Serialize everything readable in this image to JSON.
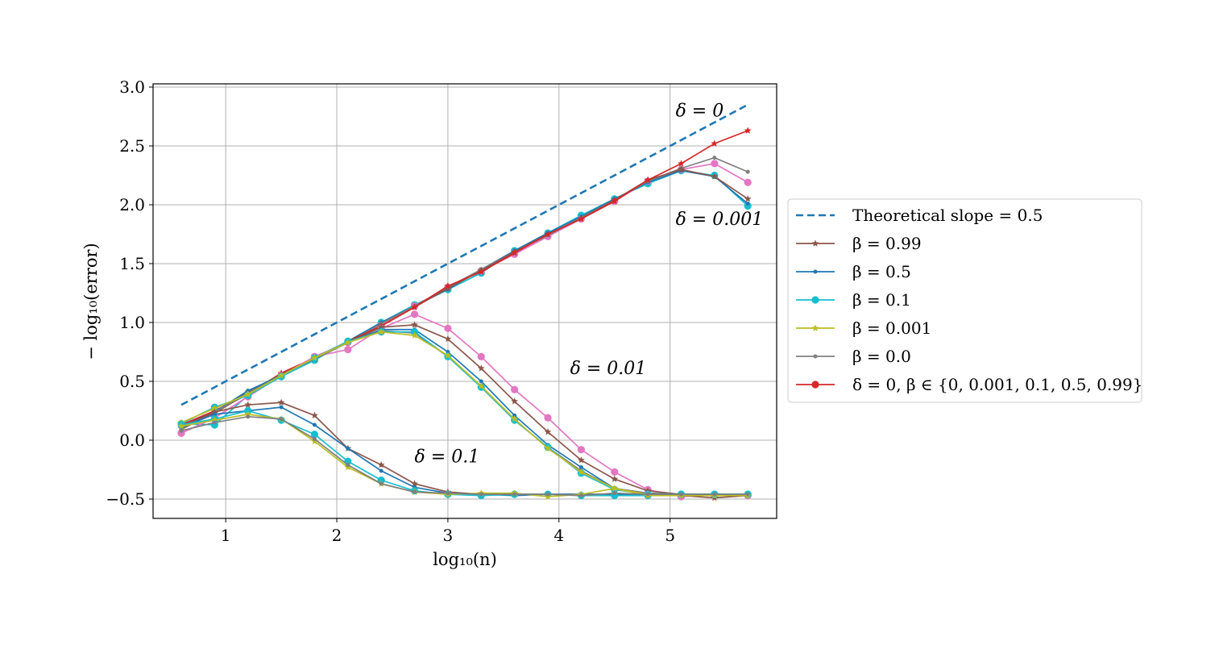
{
  "chart_data": {
    "type": "line",
    "title": "",
    "xlabel": "log₁₀(n)",
    "ylabel": "− log₁₀(error)",
    "xlim": [
      0.35,
      5.95
    ],
    "ylim": [
      -0.66,
      3.03
    ],
    "grid": true,
    "legend_placement": "outside-right",
    "x_ticks": [
      {
        "value": 1,
        "label": "1"
      },
      {
        "value": 2,
        "label": "2"
      },
      {
        "value": 3,
        "label": "3"
      },
      {
        "value": 4,
        "label": "4"
      },
      {
        "value": 5,
        "label": "5"
      }
    ],
    "y_ticks": [
      {
        "value": 3.0,
        "label": "3.0"
      },
      {
        "value": 2.5,
        "label": "2.5"
      },
      {
        "value": 2.0,
        "label": "2.0"
      },
      {
        "value": 1.5,
        "label": "1.5"
      },
      {
        "value": 1.0,
        "label": "1.0"
      },
      {
        "value": 0.5,
        "label": "0.5"
      },
      {
        "value": 0.0,
        "label": "0.0"
      },
      {
        "value": -0.5,
        "label": "−0.5"
      }
    ],
    "x": [
      0.6,
      0.9,
      1.2,
      1.5,
      1.8,
      2.1,
      2.4,
      2.7,
      3.0,
      3.3,
      3.6,
      3.9,
      4.2,
      4.5,
      4.8,
      5.1,
      5.4,
      5.7
    ],
    "theoretical": {
      "name": "Theoretical slope = 0.5",
      "x": [
        0.6,
        5.7
      ],
      "y": [
        0.3,
        2.85
      ],
      "color": "#1f77b4"
    },
    "annotations": [
      {
        "text": "δ = 0",
        "x": 5.05,
        "y": 2.75
      },
      {
        "text": "δ = 0.001",
        "x": 5.05,
        "y": 1.83
      },
      {
        "text": "δ = 0.01",
        "x": 4.1,
        "y": 0.56
      },
      {
        "text": "δ = 0.1",
        "x": 2.7,
        "y": -0.19
      }
    ],
    "legend": [
      {
        "key": "theoretical",
        "label": "Theoretical slope = 0.5",
        "color": "#1f77b4",
        "marker": "dash"
      },
      {
        "key": "b099",
        "label": "β = 0.99",
        "color": "#8c564b",
        "marker": "star"
      },
      {
        "key": "b05",
        "label": "β = 0.5",
        "color": "#1f77b4",
        "marker": "dot"
      },
      {
        "key": "b01",
        "label": "β = 0.1",
        "color": "#17becf",
        "marker": "circle"
      },
      {
        "key": "b0001",
        "label": "β = 0.001",
        "color": "#bcbd22",
        "marker": "star"
      },
      {
        "key": "b00",
        "label": "β = 0.0",
        "color": "#7f7f7f",
        "marker": "dot"
      },
      {
        "key": "d0",
        "label": "δ = 0,  β ∈ {0, 0.001, 0.1, 0.5, 0.99}",
        "color": "#d62728",
        "marker": "circle"
      }
    ],
    "series": [
      {
        "group": "δ = 0.001",
        "color": "#17becf",
        "marker": "circle",
        "values": [
          0.14,
          0.13,
          0.38,
          0.54,
          0.68,
          0.84,
          1.0,
          1.15,
          1.28,
          1.42,
          1.61,
          1.76,
          1.91,
          2.05,
          2.18,
          2.29,
          2.25,
          1.99
        ]
      },
      {
        "group": "δ = 0.001",
        "color": "#e377c2",
        "marker": "circle",
        "values": [
          0.06,
          0.19,
          0.37,
          0.55,
          0.71,
          0.83,
          0.98,
          1.14,
          1.3,
          1.44,
          1.58,
          1.73,
          1.88,
          2.03,
          2.2,
          2.3,
          2.35,
          2.19
        ]
      },
      {
        "group": "δ = 0.001",
        "color": "#1f77b4",
        "marker": "dot",
        "values": [
          0.12,
          0.24,
          0.41,
          0.55,
          0.69,
          0.84,
          1.0,
          1.14,
          1.28,
          1.45,
          1.61,
          1.76,
          1.9,
          2.05,
          2.19,
          2.29,
          2.24,
          2.01
        ]
      },
      {
        "group": "δ = 0.001",
        "color": "#7f7f7f",
        "marker": "dot",
        "values": [
          0.1,
          0.24,
          0.39,
          0.56,
          0.69,
          0.83,
          0.99,
          1.14,
          1.3,
          1.45,
          1.6,
          1.74,
          1.89,
          2.04,
          2.2,
          2.31,
          2.4,
          2.28
        ]
      },
      {
        "group": "δ = 0.001",
        "color": "#8c564b",
        "marker": "star",
        "values": [
          0.12,
          0.23,
          0.4,
          0.55,
          0.69,
          0.84,
          0.97,
          1.13,
          1.29,
          1.44,
          1.6,
          1.75,
          1.88,
          2.04,
          2.21,
          2.3,
          2.24,
          2.05
        ]
      },
      {
        "group": "δ = 0",
        "color": "#d62728",
        "marker": "star",
        "values": [
          0.13,
          0.25,
          0.39,
          0.57,
          0.7,
          0.84,
          0.97,
          1.13,
          1.31,
          1.43,
          1.59,
          1.75,
          1.88,
          2.03,
          2.21,
          2.35,
          2.52,
          2.63
        ]
      },
      {
        "group": "δ = 0.01",
        "color": "#e377c2",
        "marker": "circle",
        "values": [
          0.06,
          0.19,
          0.37,
          0.55,
          0.71,
          0.77,
          0.95,
          1.07,
          0.95,
          0.71,
          0.43,
          0.19,
          -0.08,
          -0.27,
          -0.42,
          -0.48,
          -0.46,
          -0.47
        ]
      },
      {
        "group": "δ = 0.01",
        "color": "#8c564b",
        "marker": "star",
        "values": [
          0.12,
          0.23,
          0.41,
          0.56,
          0.69,
          0.83,
          0.96,
          0.98,
          0.86,
          0.61,
          0.33,
          0.07,
          -0.17,
          -0.33,
          -0.43,
          -0.46,
          -0.47,
          -0.47
        ]
      },
      {
        "group": "δ = 0.01",
        "color": "#1f77b4",
        "marker": "dot",
        "values": [
          0.1,
          0.24,
          0.42,
          0.55,
          0.69,
          0.83,
          0.94,
          0.94,
          0.75,
          0.5,
          0.21,
          -0.04,
          -0.23,
          -0.41,
          -0.45,
          -0.46,
          -0.46,
          -0.46
        ]
      },
      {
        "group": "δ = 0.01",
        "color": "#7f7f7f",
        "marker": "dot",
        "values": [
          0.09,
          0.24,
          0.4,
          0.55,
          0.69,
          0.83,
          0.93,
          0.91,
          0.71,
          0.46,
          0.17,
          -0.06,
          -0.26,
          -0.41,
          -0.45,
          -0.46,
          -0.46,
          -0.47
        ]
      },
      {
        "group": "δ = 0.01",
        "color": "#17becf",
        "marker": "circle",
        "values": [
          0.14,
          0.28,
          0.38,
          0.54,
          0.7,
          0.84,
          0.92,
          0.92,
          0.71,
          0.45,
          0.17,
          -0.06,
          -0.28,
          -0.42,
          -0.46,
          -0.46,
          -0.46,
          -0.46
        ]
      },
      {
        "group": "δ = 0.01",
        "color": "#bcbd22",
        "marker": "star",
        "values": [
          0.15,
          0.27,
          0.39,
          0.55,
          0.7,
          0.83,
          0.92,
          0.89,
          0.72,
          0.46,
          0.18,
          -0.07,
          -0.27,
          -0.41,
          -0.46,
          -0.47,
          -0.47,
          -0.47
        ]
      },
      {
        "group": "δ = 0.1",
        "color": "#8c564b",
        "marker": "star",
        "values": [
          0.1,
          0.24,
          0.3,
          0.32,
          0.21,
          -0.07,
          -0.21,
          -0.37,
          -0.44,
          -0.46,
          -0.46,
          -0.46,
          -0.46,
          -0.46,
          -0.47,
          -0.47,
          -0.49,
          -0.47
        ]
      },
      {
        "group": "δ = 0.1",
        "color": "#1f77b4",
        "marker": "dot",
        "values": [
          0.11,
          0.22,
          0.25,
          0.28,
          0.13,
          -0.07,
          -0.26,
          -0.4,
          -0.45,
          -0.46,
          -0.47,
          -0.46,
          -0.46,
          -0.46,
          -0.47,
          -0.47,
          -0.47,
          -0.47
        ]
      },
      {
        "group": "δ = 0.1",
        "color": "#17becf",
        "marker": "circle",
        "values": [
          0.13,
          0.18,
          0.25,
          0.17,
          0.05,
          -0.18,
          -0.34,
          -0.43,
          -0.46,
          -0.47,
          -0.46,
          -0.46,
          -0.47,
          -0.47,
          -0.47,
          -0.46,
          -0.46,
          -0.46
        ]
      },
      {
        "group": "δ = 0.1",
        "color": "#bcbd22",
        "marker": "star",
        "values": [
          0.12,
          0.17,
          0.22,
          0.18,
          -0.01,
          -0.23,
          -0.37,
          -0.44,
          -0.46,
          -0.45,
          -0.45,
          -0.48,
          -0.46,
          -0.41,
          -0.47,
          -0.47,
          -0.47,
          -0.47
        ]
      },
      {
        "group": "δ = 0.1",
        "color": "#7f7f7f",
        "marker": "dot",
        "values": [
          0.08,
          0.15,
          0.2,
          0.18,
          0.01,
          -0.21,
          -0.37,
          -0.44,
          -0.45,
          -0.46,
          -0.46,
          -0.46,
          -0.47,
          -0.45,
          -0.46,
          -0.46,
          -0.46,
          -0.46
        ]
      }
    ]
  }
}
